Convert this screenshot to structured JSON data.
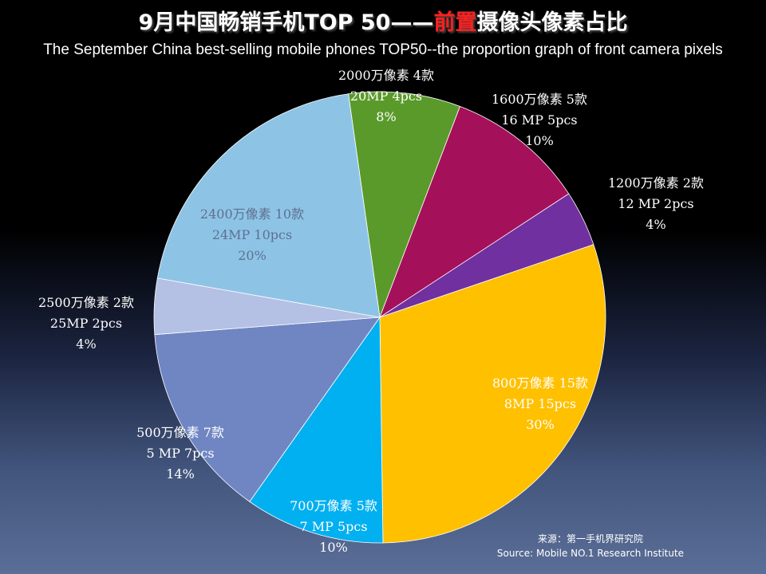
{
  "title": {
    "prefix": "9月中国畅销手机TOP 50——",
    "highlight": "前置",
    "suffix": "摄像头像素占比"
  },
  "subtitle": "The September China best-selling mobile phones TOP50--the proportion graph of front camera pixels",
  "source": {
    "line1": "来源：第一手机界研究院",
    "line2": "Source: Mobile NO.1 Research Institute"
  },
  "chart_data": {
    "type": "pie",
    "start_angle_deg": -98,
    "slices": [
      {
        "value": 8,
        "color": "#5a9a2a",
        "label_color": "#ffffff",
        "labels": [
          "2000万像素 4款",
          "20MP  4pcs",
          "8%"
        ]
      },
      {
        "value": 10,
        "color": "#a5105a",
        "label_color": "#ffffff",
        "labels": [
          "1600万像素 5款",
          "16 MP  5pcs",
          "10%"
        ]
      },
      {
        "value": 4,
        "color": "#7030a0",
        "label_color": "#ffffff",
        "labels": [
          "1200万像素 2款",
          "12 MP   2pcs",
          "4%"
        ]
      },
      {
        "value": 30,
        "color": "#ffc000",
        "label_color": "#ffffff",
        "labels": [
          "800万像素 15款",
          "8MP 15pcs",
          "30%"
        ]
      },
      {
        "value": 10,
        "color": "#00b0f0",
        "label_color": "#ffffff",
        "labels": [
          "700万像素 5款",
          "7 MP 5pcs",
          "10%"
        ]
      },
      {
        "value": 14,
        "color": "#6f86c3",
        "label_color": "#ffffff",
        "labels": [
          "500万像素 7款",
          "5 MP  7pcs",
          "14%"
        ]
      },
      {
        "value": 4,
        "color": "#b4c0e4",
        "label_color": "#ffffff",
        "labels": [
          "2500万像素  2款",
          "25MP 2pcs",
          "4%"
        ]
      },
      {
        "value": 20,
        "color": "#8dc4e6",
        "label_color": "#5f6f8f",
        "labels": [
          "2400万像素  10款",
          "24MP 10pcs",
          "20%"
        ]
      }
    ]
  }
}
